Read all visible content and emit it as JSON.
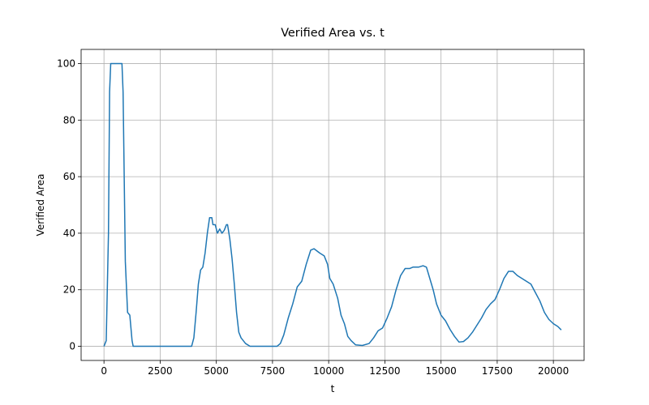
{
  "chart_data": {
    "type": "line",
    "title": "Verified Area vs. t",
    "x_label": "t",
    "y_label": "Verified Area",
    "x": [
      0,
      100,
      200,
      250,
      300,
      800,
      850,
      950,
      1050,
      1150,
      1250,
      1300,
      3900,
      4000,
      4100,
      4200,
      4300,
      4400,
      4500,
      4600,
      4700,
      4800,
      4850,
      4950,
      5050,
      5150,
      5250,
      5350,
      5450,
      5500,
      5600,
      5700,
      5800,
      5900,
      6000,
      6100,
      6300,
      6500,
      7700,
      7850,
      8000,
      8200,
      8400,
      8600,
      8800,
      9000,
      9200,
      9350,
      9600,
      9800,
      9950,
      10050,
      10200,
      10400,
      10550,
      10700,
      10850,
      11000,
      11200,
      11500,
      11800,
      12000,
      12200,
      12400,
      12600,
      12800,
      13000,
      13200,
      13400,
      13600,
      13750,
      14000,
      14200,
      14350,
      14500,
      14650,
      14800,
      15000,
      15200,
      15400,
      15600,
      15800,
      16000,
      16200,
      16400,
      16600,
      16800,
      17000,
      17200,
      17400,
      17600,
      17800,
      18000,
      18200,
      18400,
      18600,
      18800,
      19000,
      19200,
      19400,
      19600,
      19800,
      20000,
      20200,
      20350
    ],
    "series": [
      {
        "name": "Verified Area",
        "color": "#1f77b4",
        "values": [
          0,
          2,
          40,
          90,
          100,
          100,
          90,
          30,
          12,
          11,
          2,
          0,
          0,
          3,
          12,
          22,
          27,
          28,
          33,
          40,
          45.5,
          45.5,
          43,
          43,
          40,
          41.5,
          40,
          41,
          43,
          43,
          38,
          31,
          22,
          12,
          5,
          3,
          1,
          0,
          0,
          1,
          4,
          10,
          15,
          21,
          23,
          29,
          34,
          34.5,
          33,
          32,
          29,
          24,
          22,
          17,
          11,
          8,
          3.5,
          2,
          0.5,
          0.3,
          1,
          3,
          5.5,
          6.5,
          10,
          14,
          20,
          25,
          27.5,
          27.5,
          28,
          28,
          28.5,
          28,
          24,
          20,
          15,
          11,
          9,
          6,
          3.5,
          1.5,
          1.7,
          3,
          5,
          7.5,
          10,
          13,
          15,
          16.5,
          20,
          24,
          26.5,
          26.5,
          25,
          24,
          23,
          22,
          19,
          16,
          12,
          9.5,
          8,
          7,
          5.8
        ]
      }
    ],
    "xlim": [
      -1017,
      21367
    ],
    "ylim": [
      -5,
      105
    ],
    "xticks": [
      0,
      2500,
      5000,
      7500,
      10000,
      12500,
      15000,
      17500,
      20000
    ],
    "yticks": [
      0,
      20,
      40,
      60,
      80,
      100
    ],
    "grid": true
  }
}
